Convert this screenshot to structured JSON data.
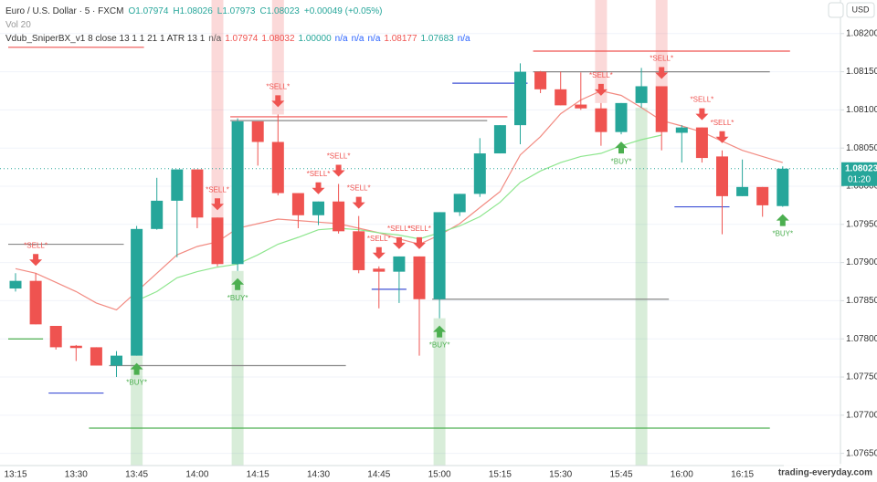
{
  "header": {
    "symbol": "Euro / U.S. Dollar · 5 · FXCM",
    "ohlc": [
      "O1.07974",
      "H1.08026",
      "L1.07973",
      "C1.08023",
      "+0.00049 (+0.05%)"
    ],
    "volume": "Vol 20",
    "indicator": {
      "name": "Vdub_SniperBX_v1 8 close 13 1 1 21 1 ATR 13 1",
      "values": [
        {
          "text": "n/a",
          "color": "#555555"
        },
        {
          "text": "1.07974",
          "color": "#ef5350"
        },
        {
          "text": "1.08032",
          "color": "#ef5350"
        },
        {
          "text": "1.00000",
          "color": "#26a69a"
        },
        {
          "text": "n/a",
          "color": "#2962ff"
        },
        {
          "text": "n/a",
          "color": "#2962ff"
        },
        {
          "text": "n/a",
          "color": "#2962ff"
        },
        {
          "text": "1.08177",
          "color": "#ef5350"
        },
        {
          "text": "1.07683",
          "color": "#26a69a"
        },
        {
          "text": "n/a",
          "color": "#2962ff"
        }
      ]
    },
    "currency": "USD",
    "countdown": "01:20",
    "watermark": "trading-everyday.com"
  },
  "chart_data": {
    "type": "candlestick",
    "categories": [
      "13:15",
      null,
      null,
      "13:30",
      null,
      null,
      "13:45",
      null,
      null,
      "14:00",
      null,
      null,
      "14:15",
      null,
      null,
      "14:30",
      null,
      null,
      "14:45",
      null,
      null,
      "15:00",
      null,
      null,
      "15:15",
      null,
      null,
      "15:30",
      null,
      null,
      "15:45",
      null,
      null,
      "16:00",
      null,
      null,
      "16:15",
      null,
      null
    ],
    "open": [
      1.07866,
      1.07876,
      1.07817,
      1.07791,
      1.07789,
      1.07765,
      1.07778,
      1.07944,
      1.07981,
      1.08022,
      1.07959,
      1.07898,
      1.08085,
      1.08058,
      1.07991,
      1.07962,
      1.0798,
      1.07941,
      1.07892,
      1.07888,
      1.07908,
      1.07852,
      1.07966,
      1.0799,
      1.08043,
      1.0808,
      1.0815,
      1.08127,
      1.08107,
      1.08102,
      1.08071,
      1.08109,
      1.08131,
      1.0807,
      1.08077,
      1.08039,
      1.07987,
      1.07999,
      1.07974
    ],
    "high": [
      1.07886,
      1.07886,
      1.07817,
      1.07792,
      1.07789,
      1.07784,
      1.07948,
      1.08011,
      1.08022,
      1.08022,
      1.07959,
      1.08089,
      1.08085,
      1.08094,
      1.07991,
      1.0798,
      1.08003,
      1.07961,
      1.07895,
      1.07908,
      1.07908,
      1.07966,
      1.0799,
      1.08063,
      1.0808,
      1.08161,
      1.08151,
      1.0815,
      1.08149,
      1.08109,
      1.08109,
      1.08155,
      1.08131,
      1.0808,
      1.08077,
      1.08047,
      1.08035,
      1.07999,
      1.08026
    ],
    "low": [
      1.07862,
      1.07819,
      1.07786,
      1.07771,
      1.07765,
      1.0775,
      1.07778,
      1.07943,
      1.07907,
      1.07945,
      1.07895,
      1.07889,
      1.08027,
      1.07988,
      1.07945,
      1.07949,
      1.07938,
      1.07886,
      1.0784,
      1.07847,
      1.07778,
      1.07827,
      1.07961,
      1.07986,
      1.08043,
      1.08055,
      1.08122,
      1.08106,
      1.081,
      1.08053,
      1.08068,
      1.08103,
      1.08047,
      1.08031,
      1.08031,
      1.07937,
      1.07987,
      1.0796,
      1.07973
    ],
    "close": [
      1.07876,
      1.07819,
      1.07789,
      1.07788,
      1.07765,
      1.07778,
      1.07944,
      1.07981,
      1.08022,
      1.07959,
      1.07898,
      1.08085,
      1.08058,
      1.07991,
      1.07962,
      1.0798,
      1.07941,
      1.0789,
      1.07888,
      1.07908,
      1.07852,
      1.07966,
      1.0799,
      1.08043,
      1.0808,
      1.0815,
      1.08127,
      1.08106,
      1.08102,
      1.08071,
      1.08109,
      1.08131,
      1.08071,
      1.08077,
      1.08037,
      1.07987,
      1.07999,
      1.07975,
      1.08023
    ],
    "up_color": "#26a69a",
    "down_color": "#ef5350",
    "overlays": [
      {
        "color": "#f28b82",
        "values": [
          1.07892,
          1.07886,
          1.07874,
          1.07862,
          1.07847,
          1.07838,
          1.07862,
          1.07886,
          1.0791,
          1.07921,
          1.07927,
          1.07945,
          1.07951,
          1.07957,
          1.07955,
          1.07953,
          1.07951,
          1.07945,
          1.07939,
          1.07931,
          1.07924,
          1.07936,
          1.07951,
          1.07972,
          1.07993,
          1.08041,
          1.08065,
          1.08095,
          1.08113,
          1.08125,
          1.08119,
          1.08103,
          1.08086,
          1.08079,
          1.08071,
          1.08059,
          1.08047,
          1.08039,
          1.08031
        ]
      },
      {
        "color": "#8ee68e",
        "values": [
          null,
          null,
          null,
          null,
          null,
          null,
          1.0785,
          1.07862,
          1.0788,
          1.07888,
          1.07894,
          1.07898,
          1.0791,
          1.07924,
          1.07933,
          1.07943,
          1.07945,
          1.07943,
          1.07939,
          1.07936,
          1.07931,
          1.07939,
          1.07948,
          1.0796,
          1.07979,
          1.08005,
          1.0802,
          1.08031,
          1.08039,
          1.08043,
          1.08053,
          1.08061,
          1.08067,
          null,
          null,
          null,
          null,
          null,
          null
        ]
      }
    ],
    "levels": [
      {
        "value": 1.08182,
        "start": 0,
        "end": 6,
        "color": "#ef5350"
      },
      {
        "value": 1.07924,
        "start": 0,
        "end": 5,
        "color": "#888888"
      },
      {
        "value": 1.078,
        "start": 0,
        "end": 1,
        "color": "#4caf50"
      },
      {
        "value": 1.07729,
        "start": 2,
        "end": 4,
        "color": "#3f51d6"
      },
      {
        "value": 1.07765,
        "start": 5,
        "end": 16,
        "color": "#888888"
      },
      {
        "value": 1.07683,
        "start": 4,
        "end": 37,
        "color": "#4caf50"
      },
      {
        "value": 1.08086,
        "start": 11,
        "end": 23,
        "color": "#888888"
      },
      {
        "value": 1.08091,
        "start": 11,
        "end": 24,
        "color": "#ef5350"
      },
      {
        "value": 1.07865,
        "start": 18,
        "end": 19,
        "color": "#3f51d6"
      },
      {
        "value": 1.07852,
        "start": 21,
        "end": 32,
        "color": "#888888"
      },
      {
        "value": 1.08135,
        "start": 22,
        "end": 25,
        "color": "#3f51d6"
      },
      {
        "value": 1.0815,
        "start": 26,
        "end": 37,
        "color": "#888888"
      },
      {
        "value": 1.07973,
        "start": 33,
        "end": 35,
        "color": "#3f51d6"
      },
      {
        "value": 1.08177,
        "start": 26,
        "end": 38,
        "color": "#ef5350"
      }
    ],
    "highlights": [
      {
        "index": 6,
        "color": "#4caf50",
        "position": "below"
      },
      {
        "index": 11,
        "color": "#4caf50",
        "position": "below"
      },
      {
        "index": 21,
        "color": "#4caf50",
        "position": "below"
      },
      {
        "index": 31,
        "color": "#4caf50",
        "position": "below"
      },
      {
        "index": 10,
        "color": "#ef5350",
        "position": "above"
      },
      {
        "index": 13,
        "color": "#ef5350",
        "position": "above"
      },
      {
        "index": 29,
        "color": "#ef5350",
        "position": "above"
      },
      {
        "index": 32,
        "color": "#ef5350",
        "position": "above"
      }
    ],
    "signals": [
      {
        "index": 1,
        "label": "*SELL*",
        "color": "#ef5350",
        "position": "above"
      },
      {
        "index": 10,
        "label": "*SELL*",
        "color": "#ef5350",
        "position": "above"
      },
      {
        "index": 13,
        "label": "*SELL*",
        "color": "#ef5350",
        "position": "above"
      },
      {
        "index": 15,
        "label": "*SELL*",
        "color": "#ef5350",
        "position": "above"
      },
      {
        "index": 16,
        "label": "*SELL*",
        "color": "#ef5350",
        "position": "above"
      },
      {
        "index": 17,
        "label": "*SELL*",
        "color": "#ef5350",
        "position": "above"
      },
      {
        "index": 18,
        "label": "*SELL*",
        "color": "#ef5350",
        "position": "above"
      },
      {
        "index": 19,
        "label": "*SELL*",
        "color": "#ef5350",
        "position": "above"
      },
      {
        "index": 20,
        "label": "*SELL*",
        "color": "#ef5350",
        "position": "above"
      },
      {
        "index": 29,
        "label": "*SELL*",
        "color": "#ef5350",
        "position": "above"
      },
      {
        "index": 32,
        "label": "*SELL*",
        "color": "#ef5350",
        "position": "above"
      },
      {
        "index": 34,
        "label": "*SELL*",
        "color": "#ef5350",
        "position": "above"
      },
      {
        "index": 35,
        "label": "*SELL*",
        "color": "#ef5350",
        "position": "above"
      },
      {
        "index": 6,
        "label": "*BUY*",
        "color": "#4caf50",
        "position": "below"
      },
      {
        "index": 11,
        "label": "*BUY*",
        "color": "#4caf50",
        "position": "below"
      },
      {
        "index": 21,
        "label": "*BUY*",
        "color": "#4caf50",
        "position": "below"
      },
      {
        "index": 30,
        "label": "*BUY*",
        "color": "#4caf50",
        "position": "below"
      },
      {
        "index": 38,
        "label": "*BUY*",
        "color": "#4caf50",
        "position": "below"
      }
    ],
    "ylim": [
      1.07634,
      1.08244
    ],
    "yticks": [
      {
        "value": 1.0765,
        "label": "1.07650"
      },
      {
        "value": 1.077,
        "label": "1.07700"
      },
      {
        "value": 1.0775,
        "label": "1.07750"
      },
      {
        "value": 1.078,
        "label": "1.07800"
      },
      {
        "value": 1.0785,
        "label": "1.07850"
      },
      {
        "value": 1.079,
        "label": "1.07900"
      },
      {
        "value": 1.0795,
        "label": "1.07950"
      },
      {
        "value": 1.08,
        "label": "1.08000"
      },
      {
        "value": 1.0805,
        "label": "1.08050"
      },
      {
        "value": 1.081,
        "label": "1.08100"
      },
      {
        "value": 1.0815,
        "label": "1.08150"
      },
      {
        "value": 1.082,
        "label": "1.08200"
      }
    ],
    "grid": true
  }
}
